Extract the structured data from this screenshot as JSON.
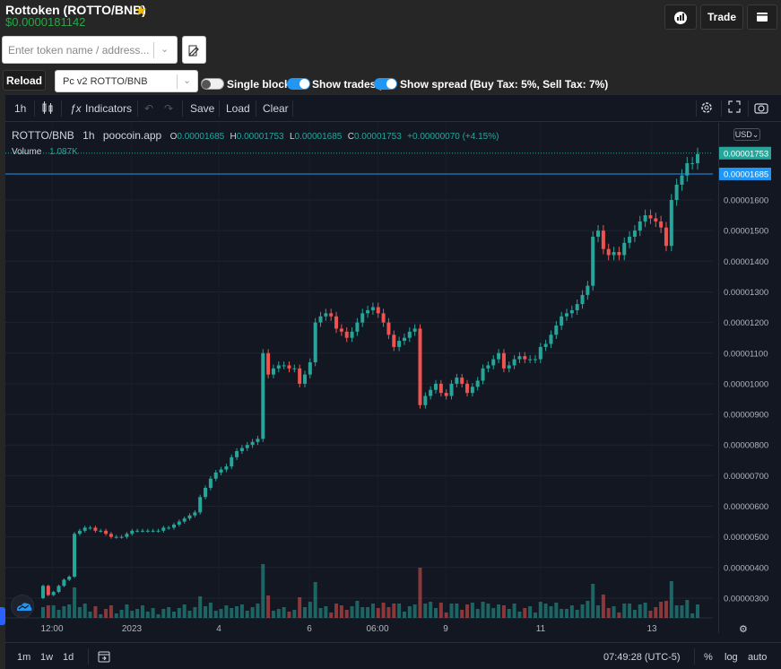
{
  "token": {
    "title": "Rottoken (ROTTO/BNB)",
    "price": "$0.0000181142"
  },
  "header_buttons": {
    "trade": "Trade"
  },
  "search": {
    "placeholder": "Enter token name / address..."
  },
  "controls": {
    "reload": "Reload",
    "pair_selected": "Pc v2 ROTTO/BNB",
    "single_blocks": {
      "label": "Single blocks",
      "on": false
    },
    "show_trades": {
      "label": "Show trades |",
      "on": true
    },
    "show_spread": {
      "label": "Show spread (Buy Tax: 5%, Sell Tax: 7%)",
      "on": true
    }
  },
  "toolbar": {
    "interval": "1h",
    "indicators": "Indicators",
    "save": "Save",
    "load": "Load",
    "clear": "Clear"
  },
  "legend": {
    "symbol": "ROTTO/BNB",
    "interval": "1h",
    "source": "poocoin.app",
    "o_label": "O",
    "o": "0.00001685",
    "h_label": "H",
    "h": "0.00001753",
    "l_label": "L",
    "l": "0.00001685",
    "c_label": "C",
    "c": "0.00001753",
    "change": "+0.00000070 (+4.15%)",
    "volume_label": "Volume",
    "volume": "1.087K"
  },
  "currency": "USD",
  "bottom": {
    "ranges": [
      "1m",
      "1w",
      "1d"
    ],
    "time": "07:49:28 (UTC-5)",
    "pct": "%",
    "log": "log",
    "auto": "auto"
  },
  "colors": {
    "up": "#26a69a",
    "down": "#ef5350",
    "accent": "#2196f3",
    "price_green": "#28a745"
  },
  "chart_data": {
    "type": "candlestick",
    "y_ticks": [
      "0.00001600",
      "0.00001500",
      "0.00001400",
      "0.00001300",
      "0.00001200",
      "0.00001100",
      "0.00001000",
      "0.00000900",
      "0.00000800",
      "0.00000700",
      "0.00000600",
      "0.00000500",
      "0.00000400",
      "0.00000300"
    ],
    "x_ticks": [
      "12:00",
      "2023",
      "4",
      "6",
      "06:00",
      "9",
      "11",
      "13"
    ],
    "price_labels": {
      "last": "0.00001753",
      "current": "0.00001685"
    },
    "closes": [
      3.4e-06,
      3.1e-06,
      3.2e-06,
      3.4e-06,
      3.6e-06,
      3.7e-06,
      5.1e-06,
      5.2e-06,
      5.3e-06,
      5.3e-06,
      5.2e-06,
      5.2e-06,
      5.1e-06,
      5e-06,
      5e-06,
      5e-06,
      5.1e-06,
      5.2e-06,
      5.2e-06,
      5.2e-06,
      5.2e-06,
      5.2e-06,
      5.2e-06,
      5.3e-06,
      5.3e-06,
      5.4e-06,
      5.5e-06,
      5.6e-06,
      5.7e-06,
      5.8e-06,
      6.3e-06,
      6.6e-06,
      6.9e-06,
      7.1e-06,
      7.2e-06,
      7.3e-06,
      7.6e-06,
      7.8e-06,
      7.9e-06,
      8e-06,
      8.1e-06,
      8.2e-06,
      1.1e-05,
      1.03e-05,
      1.05e-05,
      1.06e-05,
      1.06e-05,
      1.05e-05,
      1.05e-05,
      1e-05,
      1.03e-05,
      1.07e-05,
      1.2e-05,
      1.22e-05,
      1.23e-05,
      1.22e-05,
      1.18e-05,
      1.17e-05,
      1.15e-05,
      1.17e-05,
      1.2e-05,
      1.23e-05,
      1.24e-05,
      1.25e-05,
      1.23e-05,
      1.2e-05,
      1.16e-05,
      1.12e-05,
      1.14e-05,
      1.15e-05,
      1.17e-05,
      1.18e-05,
      9.3e-06,
      9.6e-06,
      9.8e-06,
      1e-05,
      9.7e-06,
      9.6e-06,
      1e-05,
      1.02e-05,
      1e-05,
      9.7e-06,
      9.9e-06,
      1.01e-05,
      1.05e-05,
      1.06e-05,
      1.08e-05,
      1.1e-05,
      1.05e-05,
      1.06e-05,
      1.08e-05,
      1.09e-05,
      1.08e-05,
      1.08e-05,
      1.08e-05,
      1.12e-05,
      1.13e-05,
      1.16e-05,
      1.19e-05,
      1.22e-05,
      1.23e-05,
      1.24e-05,
      1.26e-05,
      1.29e-05,
      1.32e-05,
      1.48e-05,
      1.5e-05,
      1.44e-05,
      1.42e-05,
      1.43e-05,
      1.42e-05,
      1.46e-05,
      1.48e-05,
      1.5e-05,
      1.53e-05,
      1.55e-05,
      1.54e-05,
      1.53e-05,
      1.51e-05,
      1.45e-05,
      1.6e-05,
      1.65e-05,
      1.68e-05,
      1.72e-05,
      1.72e-05,
      1.75e-05
    ]
  }
}
